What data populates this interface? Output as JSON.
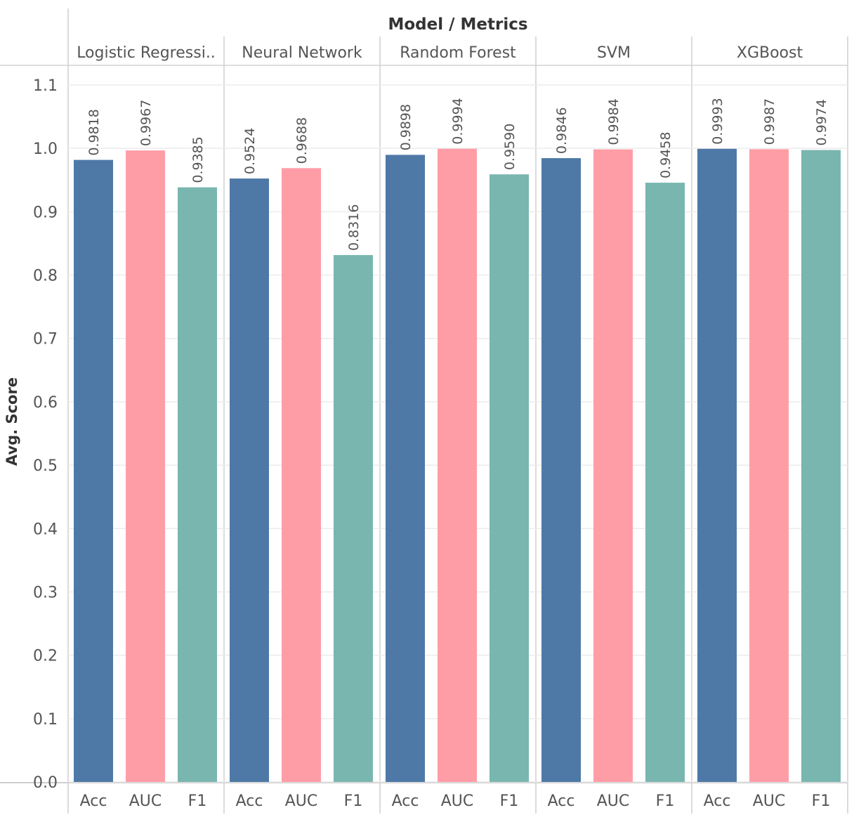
{
  "chart_data": {
    "type": "bar",
    "header_title": "Model / Metrics",
    "ylabel": "Avg. Score",
    "ylim": [
      0,
      1.1
    ],
    "yticks": [
      "0.0",
      "0.1",
      "0.2",
      "0.3",
      "0.4",
      "0.5",
      "0.6",
      "0.7",
      "0.8",
      "0.9",
      "1.0",
      "1.1"
    ],
    "grid": true,
    "metrics": [
      "Acc",
      "AUC",
      "F1"
    ],
    "colors": {
      "Acc": "#4e79a7",
      "AUC": "#ff9da7",
      "F1": "#79b6b0"
    },
    "groups": [
      {
        "model": "Logistic Regressi..",
        "values": [
          0.9818,
          0.9967,
          0.9385
        ],
        "labels": [
          "0.9818",
          "0.9967",
          "0.9385"
        ]
      },
      {
        "model": "Neural Network",
        "values": [
          0.9524,
          0.9688,
          0.8316
        ],
        "labels": [
          "0.9524",
          "0.9688",
          "0.8316"
        ]
      },
      {
        "model": "Random Forest",
        "values": [
          0.9898,
          0.9994,
          0.959
        ],
        "labels": [
          "0.9898",
          "0.9994",
          "0.9590"
        ]
      },
      {
        "model": "SVM",
        "values": [
          0.9846,
          0.9984,
          0.9458
        ],
        "labels": [
          "0.9846",
          "0.9984",
          "0.9458"
        ]
      },
      {
        "model": "XGBoost",
        "values": [
          0.9993,
          0.9987,
          0.9974
        ],
        "labels": [
          "0.9993",
          "0.9987",
          "0.9974"
        ]
      }
    ]
  }
}
